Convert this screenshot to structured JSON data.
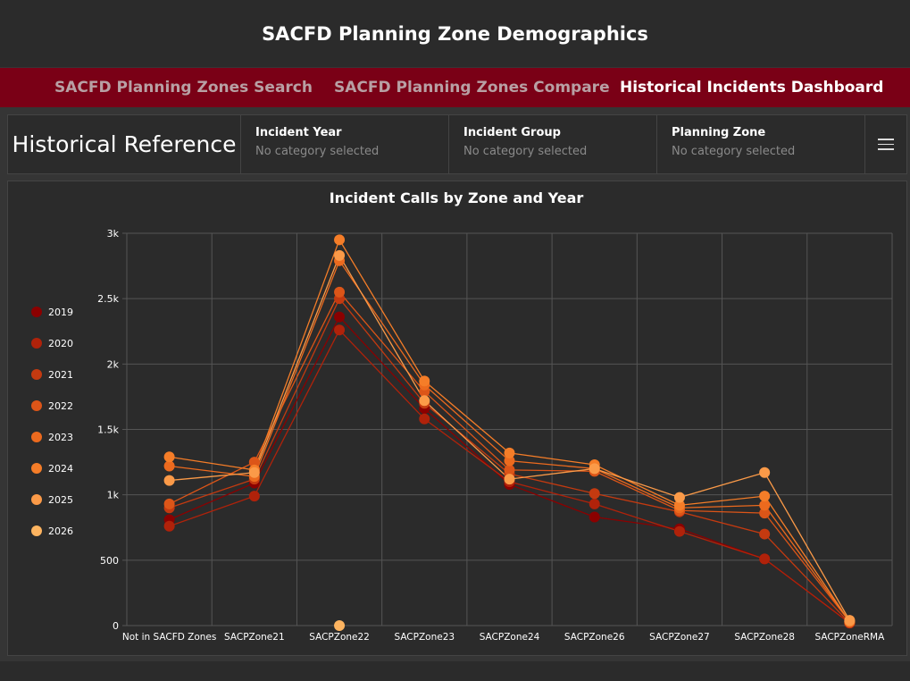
{
  "app": {
    "title": "SACFD Planning Zone Demographics"
  },
  "nav": {
    "tabs": [
      {
        "label": "SACFD Planning Zones Search",
        "active": false
      },
      {
        "label": "SACFD Planning Zones Compare",
        "active": false
      },
      {
        "label": "Historical Incidents Dashboard",
        "active": true
      }
    ]
  },
  "filters": {
    "title": "Historical Reference",
    "items": [
      {
        "label": "Incident Year",
        "value": "No category selected"
      },
      {
        "label": "Incident Group",
        "value": "No category selected"
      },
      {
        "label": "Planning Zone",
        "value": "No category selected"
      }
    ],
    "menu_icon": "hamburger-menu-icon"
  },
  "chart_data": {
    "type": "line",
    "title": "Incident Calls by Zone and Year",
    "categories": [
      "Not in SACFD Zones",
      "SACPZone21",
      "SACPZone22",
      "SACPZone23",
      "SACPZone24",
      "SACPZone26",
      "SACPZone27",
      "SACPZone28",
      "SACPZoneRMA"
    ],
    "ylim": [
      0,
      3000
    ],
    "yticks": [
      0,
      500,
      1000,
      1500,
      2000,
      2500,
      3000
    ],
    "ytick_labels": [
      "0",
      "500",
      "1k",
      "1.5k",
      "2k",
      "2.5k",
      "3k"
    ],
    "grid": true,
    "legend": "left",
    "series": [
      {
        "name": "2019",
        "color": "#8b0000",
        "values": [
          810,
          1090,
          2360,
          1660,
          1080,
          830,
          740,
          510,
          20
        ]
      },
      {
        "name": "2020",
        "color": "#b0220a",
        "values": [
          760,
          990,
          2260,
          1580,
          1100,
          930,
          720,
          510,
          20
        ]
      },
      {
        "name": "2021",
        "color": "#c43a10",
        "values": [
          900,
          1120,
          2500,
          1700,
          1160,
          1010,
          870,
          700,
          20
        ]
      },
      {
        "name": "2022",
        "color": "#dc5518",
        "values": [
          930,
          1250,
          2550,
          1790,
          1190,
          1180,
          880,
          860,
          30
        ]
      },
      {
        "name": "2023",
        "color": "#ec6a1e",
        "values": [
          1220,
          1140,
          2790,
          1840,
          1260,
          1200,
          900,
          920,
          30
        ]
      },
      {
        "name": "2024",
        "color": "#f57d28",
        "values": [
          1290,
          1190,
          2950,
          1870,
          1320,
          1230,
          920,
          990,
          30
        ]
      },
      {
        "name": "2025",
        "color": "#fb9a48",
        "values": [
          1110,
          1170,
          2830,
          1720,
          1120,
          1200,
          980,
          1170,
          40
        ]
      },
      {
        "name": "2026",
        "color": "#fdb460",
        "values": [
          null,
          null,
          0,
          null,
          null,
          null,
          null,
          null,
          null
        ]
      }
    ]
  }
}
